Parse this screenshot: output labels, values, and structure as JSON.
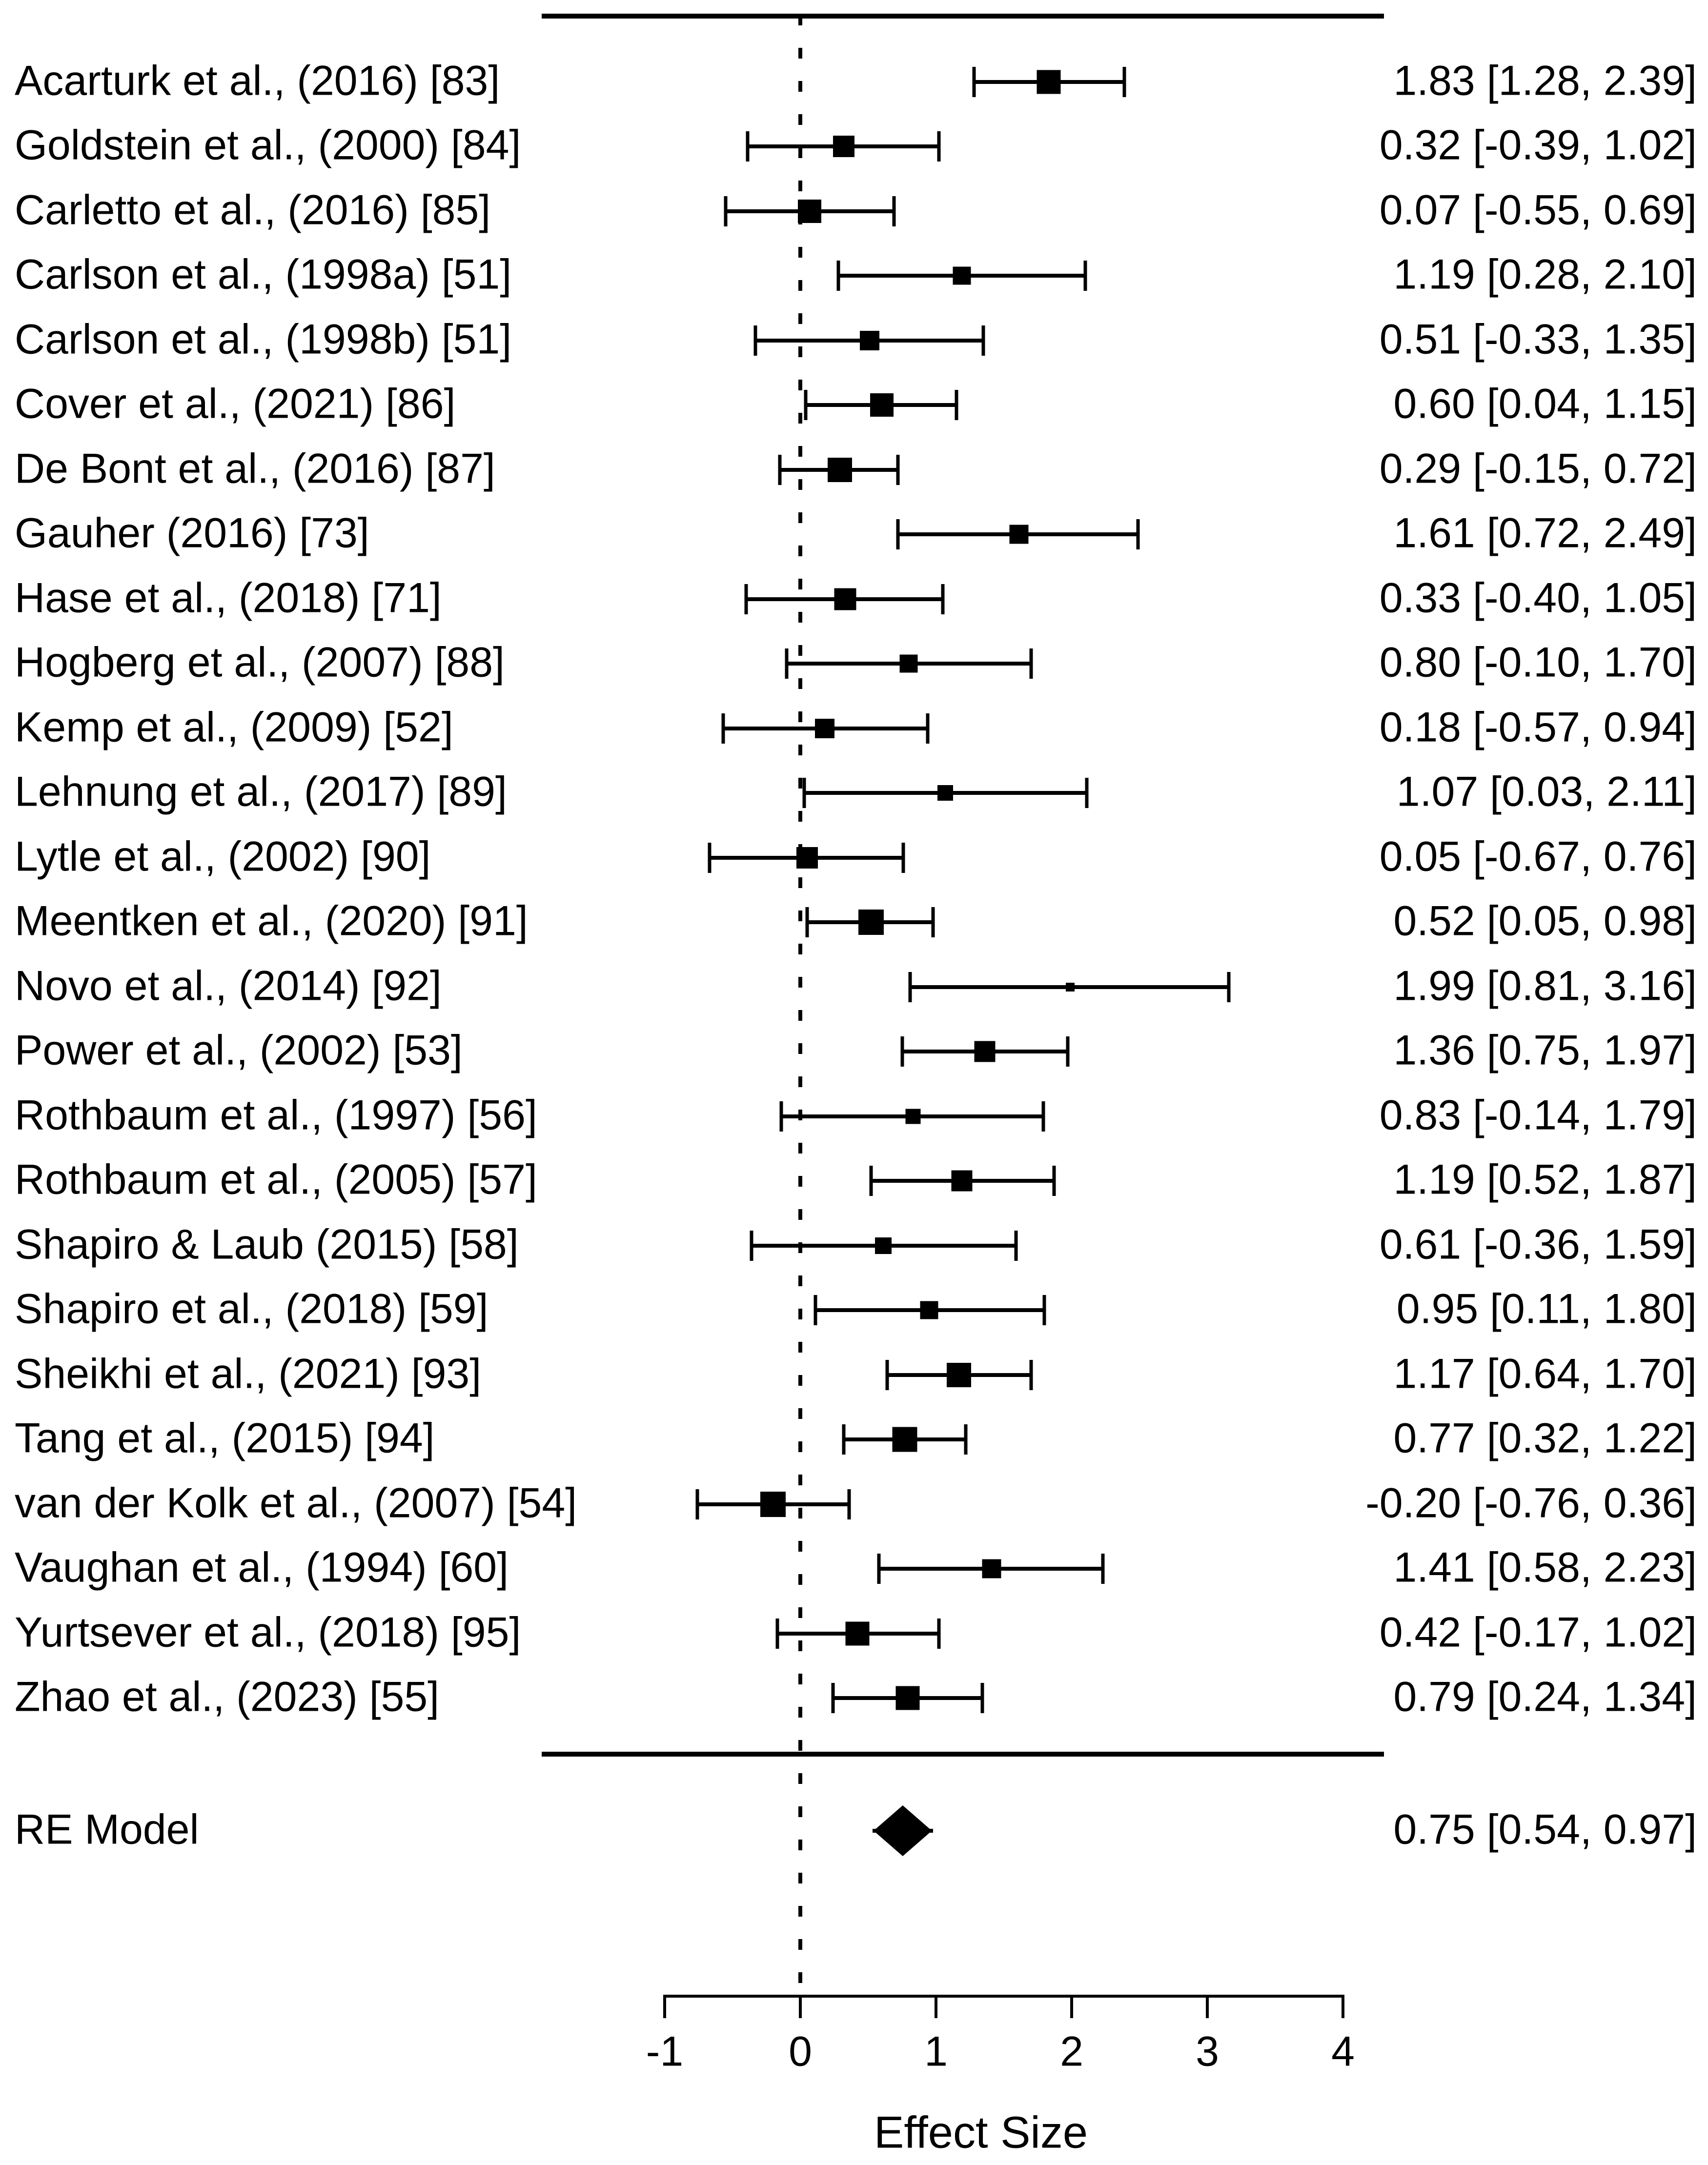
{
  "chart_data": {
    "type": "forest",
    "title": "",
    "xlabel": "Effect Size",
    "xlim": [
      -1,
      4
    ],
    "x_ticks": [
      -1,
      0,
      1,
      2,
      3,
      4
    ],
    "zero_reference_line": 0,
    "grid": false,
    "value_column_format": "estimate [lower, upper]",
    "studies": [
      {
        "label": "Acarturk et al., (2016) [83]",
        "estimate": 1.83,
        "lower": 1.28,
        "upper": 2.39,
        "value_text": "1.83 [1.28, 2.39]",
        "marker_size": 49
      },
      {
        "label": "Goldstein et al., (2000) [84]",
        "estimate": 0.32,
        "lower": -0.39,
        "upper": 1.02,
        "value_text": "0.32 [-0.39, 1.02]",
        "marker_size": 44
      },
      {
        "label": "Carletto et al., (2016) [85]",
        "estimate": 0.07,
        "lower": -0.55,
        "upper": 0.69,
        "value_text": "0.07 [-0.55, 0.69]",
        "marker_size": 48
      },
      {
        "label": "Carlson et al., (1998a) [51]",
        "estimate": 1.19,
        "lower": 0.28,
        "upper": 2.1,
        "value_text": "1.19 [0.28, 2.10]",
        "marker_size": 37
      },
      {
        "label": "Carlson et al., (1998b) [51]",
        "estimate": 0.51,
        "lower": -0.33,
        "upper": 1.35,
        "value_text": "0.51 [-0.33, 1.35]",
        "marker_size": 40
      },
      {
        "label": "Cover et al., (2021) [86]",
        "estimate": 0.6,
        "lower": 0.04,
        "upper": 1.15,
        "value_text": "0.60 [0.04, 1.15]",
        "marker_size": 48
      },
      {
        "label": "De Bont et al., (2016) [87]",
        "estimate": 0.29,
        "lower": -0.15,
        "upper": 0.72,
        "value_text": "0.29 [-0.15, 0.72]",
        "marker_size": 50
      },
      {
        "label": "Gauher (2016) [73]",
        "estimate": 1.61,
        "lower": 0.72,
        "upper": 2.49,
        "value_text": "1.61 [0.72, 2.49]",
        "marker_size": 39
      },
      {
        "label": "Hase et al., (2018) [71]",
        "estimate": 0.33,
        "lower": -0.4,
        "upper": 1.05,
        "value_text": "0.33 [-0.40, 1.05]",
        "marker_size": 45
      },
      {
        "label": "Hogberg et al., (2007) [88]",
        "estimate": 0.8,
        "lower": -0.1,
        "upper": 1.7,
        "value_text": "0.80 [-0.10, 1.70]",
        "marker_size": 37
      },
      {
        "label": "Kemp et al., (2009) [52]",
        "estimate": 0.18,
        "lower": -0.57,
        "upper": 0.94,
        "value_text": "0.18 [-0.57, 0.94]",
        "marker_size": 40
      },
      {
        "label": "Lehnung et al., (2017) [89]",
        "estimate": 1.07,
        "lower": 0.03,
        "upper": 2.11,
        "value_text": "1.07 [0.03, 2.11]",
        "marker_size": 32
      },
      {
        "label": "Lytle et al., (2002) [90]",
        "estimate": 0.05,
        "lower": -0.67,
        "upper": 0.76,
        "value_text": "0.05 [-0.67, 0.76]",
        "marker_size": 44
      },
      {
        "label": "Meentken et al., (2020) [91]",
        "estimate": 0.52,
        "lower": 0.05,
        "upper": 0.98,
        "value_text": "0.52 [0.05, 0.98]",
        "marker_size": 52
      },
      {
        "label": "Novo et al., (2014) [92]",
        "estimate": 1.99,
        "lower": 0.81,
        "upper": 3.16,
        "value_text": "1.99 [0.81, 3.16]",
        "marker_size": 18
      },
      {
        "label": "Power et al., (2002) [53]",
        "estimate": 1.36,
        "lower": 0.75,
        "upper": 1.97,
        "value_text": "1.36 [0.75, 1.97]",
        "marker_size": 43
      },
      {
        "label": "Rothbaum et al., (1997) [56]",
        "estimate": 0.83,
        "lower": -0.14,
        "upper": 1.79,
        "value_text": "0.83 [-0.14, 1.79]",
        "marker_size": 31
      },
      {
        "label": "Rothbaum et al., (2005) [57]",
        "estimate": 1.19,
        "lower": 0.52,
        "upper": 1.87,
        "value_text": "1.19 [0.52, 1.87]",
        "marker_size": 43
      },
      {
        "label": "Shapiro & Laub (2015) [58]",
        "estimate": 0.61,
        "lower": -0.36,
        "upper": 1.59,
        "value_text": "0.61 [-0.36, 1.59]",
        "marker_size": 34
      },
      {
        "label": "Shapiro et al., (2018) [59]",
        "estimate": 0.95,
        "lower": 0.11,
        "upper": 1.8,
        "value_text": "0.95 [0.11, 1.80]",
        "marker_size": 37
      },
      {
        "label": "Sheikhi et al., (2021) [93]",
        "estimate": 1.17,
        "lower": 0.64,
        "upper": 1.7,
        "value_text": "1.17 [0.64, 1.70]",
        "marker_size": 50
      },
      {
        "label": "Tang et al., (2015) [94]",
        "estimate": 0.77,
        "lower": 0.32,
        "upper": 1.22,
        "value_text": "0.77 [0.32, 1.22]",
        "marker_size": 51
      },
      {
        "label": "van der Kolk et al., (2007) [54]",
        "estimate": -0.2,
        "lower": -0.76,
        "upper": 0.36,
        "value_text": "-0.20 [-0.76, 0.36]",
        "marker_size": 52
      },
      {
        "label": "Vaughan et al., (1994) [60]",
        "estimate": 1.41,
        "lower": 0.58,
        "upper": 2.23,
        "value_text": "1.41 [0.58, 2.23]",
        "marker_size": 39
      },
      {
        "label": "Yurtsever et al., (2018) [95]",
        "estimate": 0.42,
        "lower": -0.17,
        "upper": 1.02,
        "value_text": "0.42 [-0.17, 1.02]",
        "marker_size": 49
      },
      {
        "label": "Zhao et al., (2023) [55]",
        "estimate": 0.79,
        "lower": 0.24,
        "upper": 1.34,
        "value_text": "0.79 [0.24, 1.34]",
        "marker_size": 49
      }
    ],
    "summary": {
      "label": "RE Model",
      "estimate": 0.75,
      "lower": 0.54,
      "upper": 0.97,
      "value_text": "0.75 [0.54, 0.97]"
    }
  }
}
